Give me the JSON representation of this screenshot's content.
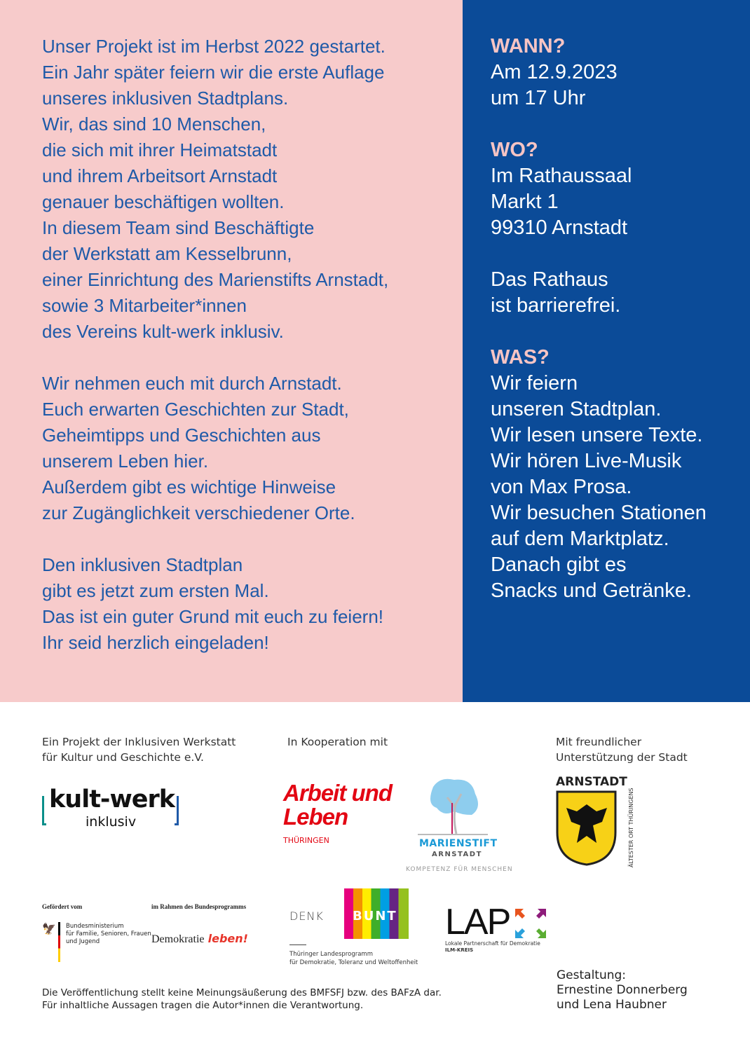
{
  "left": {
    "paragraphs": [
      [
        "Unser Projekt ist im Herbst 2022 gestartet.",
        "Ein Jahr später feiern wir die erste Auflage",
        "unseres inklusiven Stadtplans.",
        "Wir, das sind 10 Menschen,",
        "die sich mit ihrer Heimatstadt",
        "und ihrem Arbeitsort Arnstadt",
        "genauer beschäftigen wollten.",
        "In diesem Team sind Beschäftigte",
        "der Werkstatt am Kesselbrunn,",
        "einer Einrichtung des Marienstifts Arnstadt,",
        "sowie 3 Mitarbeiter*innen",
        "des Vereins kult-werk inklusiv."
      ],
      [
        "Wir nehmen euch mit durch Arnstadt.",
        "Euch erwarten Geschichten zur Stadt,",
        "Geheimtipps und Geschichten aus",
        "unserem Leben hier.",
        "Außerdem gibt es wichtige Hinweise",
        "zur Zugänglichkeit verschiedener Orte."
      ],
      [
        "Den inklusiven Stadtplan",
        "gibt es jetzt zum ersten Mal.",
        "Das ist ein guter Grund mit euch zu feiern!",
        "Ihr seid herzlich eingeladen!"
      ]
    ]
  },
  "right": {
    "blocks": [
      {
        "heading": "WANN?",
        "lines": [
          "Am 12.9.2023",
          "um 17 Uhr"
        ]
      },
      {
        "heading": "WO?",
        "lines": [
          "Im Rathaussaal",
          "Markt 1",
          "99310 Arnstadt"
        ]
      },
      {
        "heading": "",
        "lines": [
          "Das Rathaus",
          "ist barrierefrei."
        ]
      },
      {
        "heading": "WAS?",
        "lines": [
          "Wir feiern",
          "unseren Stadtplan.",
          "Wir lesen unsere Texte.",
          "Wir hören Live-Musik",
          "von Max Prosa.",
          "Wir besuchen Stationen",
          "auf dem Marktplatz.",
          "Danach gibt es",
          "Snacks und Getränke."
        ]
      }
    ]
  },
  "footer": {
    "project": [
      "Ein Projekt der Inklusiven Werkstatt",
      "für Kultur und Geschichte e.V."
    ],
    "cooperation": "In Kooperation mit",
    "support": [
      "Mit freundlicher",
      "Unterstützung der Stadt"
    ],
    "logos": {
      "kultwerk": {
        "main": "kult-werk",
        "sub": "inklusiv"
      },
      "aul": {
        "main1": "Arbeit und",
        "main2": "Leben",
        "sub": "THÜRINGEN"
      },
      "marienstift": {
        "main": "MARIENSTIFT",
        "sub": "ARNSTADT",
        "tag": "KOMPETENZ FÜR MENSCHEN"
      },
      "arnstadt": {
        "top": "ARNSTADT",
        "side": "ÄLTESTER ORT THÜRINGENS"
      },
      "bmfsfj": {
        "label": "Gefördert vom",
        "text": [
          "Bundesministerium",
          "für Familie, Senioren, Frauen",
          "und Jugend"
        ]
      },
      "demokratie": {
        "label": "im Rahmen des Bundesprogramms",
        "main": "Demokratie",
        "script": "leben!"
      },
      "denkbunt": {
        "denk": "DENK",
        "bunt": "BUNT",
        "text": [
          "Thüringer Landesprogramm",
          "für Demokratie, Toleranz und Weltoffenheit"
        ]
      },
      "lap": {
        "main": "LAP",
        "text": "Lokale Partnerschaft für Demokratie",
        "sub": "ILM-KREIS"
      }
    },
    "disclaimer": [
      "Die Veröffentlichung stellt keine Meinungsäußerung des BMFSFJ bzw. des BAFzA dar.",
      "Für inhaltliche Aussagen tragen die Autor*innen die Verantwortung."
    ],
    "credits": [
      "Gestaltung:",
      "Ernestine Donnerberg",
      "und Lena Haubner"
    ]
  },
  "colors": {
    "pink": "#f7cbcb",
    "blue": "#0b4b98",
    "text_blue": "#1f5aa8",
    "heading_pink": "#f6c4c4"
  }
}
